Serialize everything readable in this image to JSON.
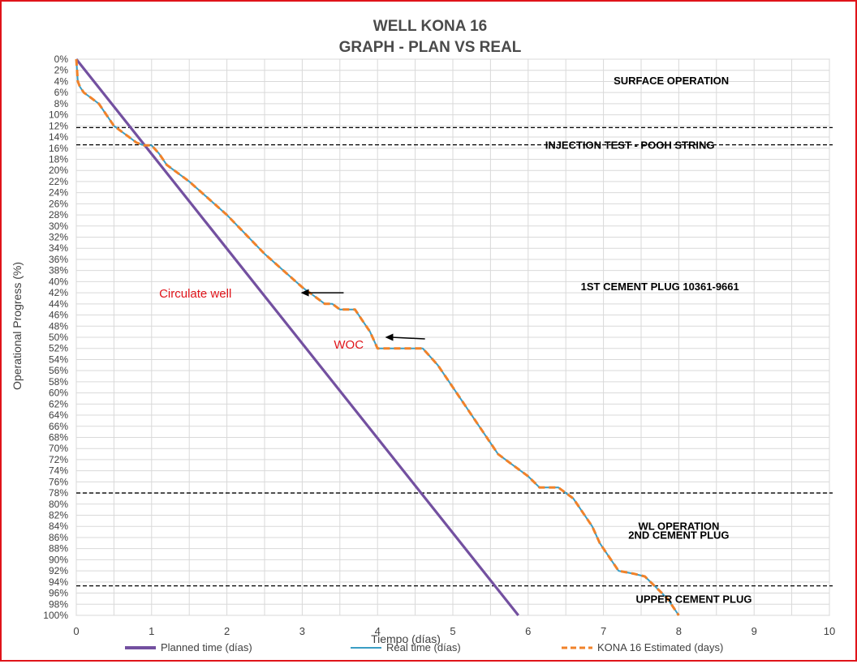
{
  "chart_data": {
    "type": "line",
    "title": [
      "WELL KONA 16",
      "GRAPH  - PLAN VS REAL"
    ],
    "xlabel": "Tiempo (días)",
    "ylabel": "Operational Progress (%)",
    "xlim": [
      0,
      10
    ],
    "ylim": [
      0,
      100
    ],
    "y_inverted": true,
    "x_ticks": [
      "0",
      "1",
      "2",
      "3",
      "4",
      "5",
      "6",
      "7",
      "8",
      "9",
      "10"
    ],
    "y_ticks": [
      "0%",
      "2%",
      "4%",
      "6%",
      "8%",
      "10%",
      "12%",
      "14%",
      "16%",
      "18%",
      "20%",
      "22%",
      "24%",
      "26%",
      "28%",
      "30%",
      "32%",
      "34%",
      "36%",
      "38%",
      "40%",
      "42%",
      "44%",
      "46%",
      "48%",
      "50%",
      "52%",
      "54%",
      "56%",
      "58%",
      "60%",
      "62%",
      "64%",
      "66%",
      "68%",
      "70%",
      "72%",
      "74%",
      "76%",
      "78%",
      "80%",
      "82%",
      "84%",
      "86%",
      "88%",
      "90%",
      "92%",
      "94%",
      "96%",
      "98%",
      "100%"
    ],
    "grid": true,
    "legend_position": "bottom",
    "series": [
      {
        "name": "Planned time (días)",
        "color": "#7350a0",
        "style": "solid",
        "x": [
          0,
          5.87
        ],
        "y": [
          0,
          100
        ]
      },
      {
        "name": "Real time (días)",
        "color": "#3a9dc4",
        "style": "solid",
        "x": [
          0,
          0.02,
          0.05,
          0.1,
          0.2,
          0.3,
          0.4,
          0.5,
          0.6,
          0.7,
          0.8,
          0.9,
          1.0,
          1.1,
          1.2,
          1.5,
          2.0,
          2.5,
          3.0,
          3.1,
          3.2,
          3.3,
          3.4,
          3.5,
          3.6,
          3.7,
          3.8,
          3.9,
          4.0,
          4.2,
          4.4,
          4.6,
          4.8,
          5.0,
          5.3,
          5.6,
          5.8,
          6.0,
          6.15,
          6.3,
          6.4,
          6.6,
          6.7,
          6.85,
          6.95,
          7.0,
          7.1,
          7.2,
          7.4,
          7.55,
          7.7,
          7.85,
          8.0
        ],
        "y": [
          0,
          4,
          5,
          6,
          7,
          8,
          10,
          12,
          13,
          14,
          15,
          15.5,
          15.5,
          17,
          19,
          22,
          28,
          35,
          41,
          42,
          43,
          44,
          44,
          45,
          45,
          45,
          47,
          49,
          52,
          52,
          52,
          52,
          55,
          59,
          65,
          71,
          73,
          75,
          77,
          77,
          77,
          79,
          81,
          84,
          87,
          88,
          90,
          92,
          92.5,
          93,
          95,
          97,
          100
        ]
      },
      {
        "name": "KONA 16 Estimated (days)",
        "color": "#f0822a",
        "style": "dashed",
        "x": [
          0,
          0.02,
          0.05,
          0.1,
          0.2,
          0.3,
          0.4,
          0.5,
          0.6,
          0.7,
          0.8,
          0.9,
          1.0,
          1.1,
          1.2,
          1.5,
          2.0,
          2.5,
          3.0,
          3.1,
          3.2,
          3.3,
          3.4,
          3.5,
          3.6,
          3.7,
          3.8,
          3.9,
          4.0,
          4.2,
          4.4,
          4.6,
          4.8,
          5.0,
          5.3,
          5.6,
          5.8,
          6.0,
          6.15,
          6.3,
          6.4,
          6.6,
          6.7,
          6.85,
          6.95,
          7.0,
          7.1,
          7.2,
          7.4,
          7.55,
          7.7,
          7.85,
          8.0
        ],
        "y": [
          0,
          4,
          5,
          6,
          7,
          8,
          10,
          12,
          13,
          14,
          15,
          15.5,
          15.5,
          17,
          19,
          22,
          28,
          35,
          41,
          42,
          43,
          44,
          44,
          45,
          45,
          45,
          47,
          49,
          52,
          52,
          52,
          52,
          55,
          59,
          65,
          71,
          73,
          75,
          77,
          77,
          77,
          79,
          81,
          84,
          87,
          88,
          90,
          92,
          92.5,
          93,
          95,
          97,
          100
        ]
      }
    ],
    "phase_lines_y": [
      12.3,
      15.4,
      78.0,
      94.7
    ],
    "phase_labels": [
      {
        "text": "SURFACE OPERATION",
        "x": 7.9,
        "y": 3.8
      },
      {
        "text": "INJECTION TEST - POOH STRING",
        "x": 7.35,
        "y": 15.4
      },
      {
        "text": "1ST CEMENT PLUG  10361-9661",
        "x": 7.75,
        "y": 40.8
      },
      {
        "text": "WL OPERATION",
        "x": 8.0,
        "y": 83.9
      },
      {
        "text": "2ND CEMENT PLUG",
        "x": 8.0,
        "y": 85.5
      },
      {
        "text": "UPPER CEMENT PLUG",
        "x": 8.2,
        "y": 97.0
      }
    ],
    "annotations": [
      {
        "text": "Circulate well",
        "x": 1.1,
        "y": 42,
        "arrow_from": [
          3.55,
          42
        ],
        "arrow_to": [
          2.98,
          42
        ]
      },
      {
        "text": "WOC",
        "x": 3.42,
        "y": 51.2,
        "arrow_from": [
          4.63,
          50.3
        ],
        "arrow_to": [
          4.1,
          50.0
        ]
      }
    ]
  }
}
